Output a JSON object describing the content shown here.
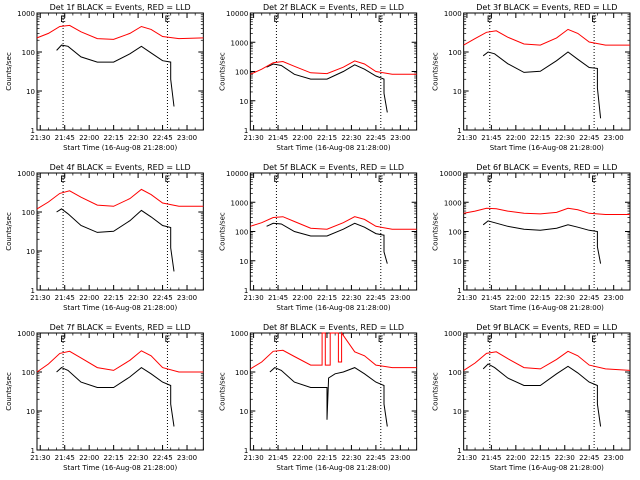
{
  "x_axis_title": "Start Time (16-Aug-08 21:28:00)",
  "y_axis_title": "Counts/sec",
  "x_tick_labels": [
    "21:30",
    "21:45",
    "22:00",
    "22:15",
    "22:30",
    "22:45",
    "23:00"
  ],
  "colors": {
    "events": "#000000",
    "lld": "#ff0000",
    "axis": "#000000",
    "marker": "#000000"
  },
  "chart_data": [
    {
      "type": "line",
      "title": "Det 1f BLACK = Events, RED = LLD",
      "xlabel": "Start Time (16-Aug-08 21:28:00)",
      "ylabel": "Counts/sec",
      "yscale": "log",
      "ylim": [
        1,
        1000
      ],
      "y_tick_labels": [
        "1",
        "10",
        "100",
        "1000"
      ],
      "xlim": [
        "21:28",
        "23:10"
      ],
      "markers": [
        {
          "label": "E",
          "time": "21:44"
        },
        {
          "label": "E",
          "time": "22:48"
        }
      ],
      "series": [
        {
          "name": "Events",
          "color": "#000000",
          "x": [
            "21:40",
            "21:43",
            "21:47",
            "21:55",
            "22:05",
            "22:15",
            "22:25",
            "22:32",
            "22:38",
            "22:45",
            "22:50",
            "22:50",
            "22:52"
          ],
          "y": [
            110,
            150,
            140,
            75,
            55,
            55,
            90,
            140,
            95,
            60,
            55,
            20,
            4
          ]
        },
        {
          "name": "LLD",
          "color": "#ff0000",
          "x": [
            "21:28",
            "21:35",
            "21:42",
            "21:48",
            "21:55",
            "22:05",
            "22:15",
            "22:25",
            "22:32",
            "22:38",
            "22:45",
            "22:55",
            "23:10"
          ],
          "y": [
            230,
            300,
            450,
            480,
            330,
            220,
            210,
            300,
            450,
            380,
            250,
            220,
            230
          ]
        }
      ]
    },
    {
      "type": "line",
      "title": "Det 2f BLACK = Events, RED = LLD",
      "xlabel": "Start Time (16-Aug-08 21:28:00)",
      "ylabel": "Counts/sec",
      "yscale": "log",
      "ylim": [
        1,
        10000
      ],
      "y_tick_labels": [
        "1",
        "10",
        "100",
        "1000",
        "10000"
      ],
      "xlim": [
        "21:28",
        "23:10"
      ],
      "markers": [
        {
          "label": "E",
          "time": "21:44"
        },
        {
          "label": "E",
          "time": "22:48"
        }
      ],
      "series": [
        {
          "name": "Events",
          "color": "#000000",
          "x": [
            "21:38",
            "21:42",
            "21:47",
            "21:55",
            "22:05",
            "22:15",
            "22:25",
            "22:32",
            "22:38",
            "22:45",
            "22:50",
            "22:50",
            "22:52"
          ],
          "y": [
            140,
            180,
            160,
            80,
            55,
            55,
            100,
            170,
            120,
            70,
            55,
            18,
            4
          ]
        },
        {
          "name": "LLD",
          "color": "#ff0000",
          "x": [
            "21:28",
            "21:35",
            "21:42",
            "21:48",
            "21:55",
            "22:05",
            "22:15",
            "22:25",
            "22:32",
            "22:38",
            "22:45",
            "22:55",
            "23:10"
          ],
          "y": [
            80,
            120,
            200,
            220,
            150,
            90,
            85,
            140,
            230,
            180,
            100,
            80,
            80
          ]
        }
      ]
    },
    {
      "type": "line",
      "title": "Det 3f BLACK = Events, RED = LLD",
      "xlabel": "Start Time (16-Aug-08 21:28:00)",
      "ylabel": "Counts/sec",
      "yscale": "log",
      "ylim": [
        1,
        1000
      ],
      "y_tick_labels": [
        "1",
        "10",
        "100",
        "1000"
      ],
      "xlim": [
        "21:28",
        "23:10"
      ],
      "markers": [
        {
          "label": "E",
          "time": "21:44"
        },
        {
          "label": "E",
          "time": "22:48"
        }
      ],
      "series": [
        {
          "name": "Events",
          "color": "#000000",
          "x": [
            "21:40",
            "21:43",
            "21:47",
            "21:55",
            "22:05",
            "22:15",
            "22:25",
            "22:32",
            "22:38",
            "22:45",
            "22:50",
            "22:50",
            "22:52"
          ],
          "y": [
            80,
            100,
            90,
            50,
            30,
            32,
            60,
            100,
            65,
            40,
            38,
            12,
            2
          ]
        },
        {
          "name": "LLD",
          "color": "#ff0000",
          "x": [
            "21:28",
            "21:35",
            "21:42",
            "21:48",
            "21:55",
            "22:05",
            "22:15",
            "22:25",
            "22:32",
            "22:38",
            "22:45",
            "22:55",
            "23:10"
          ],
          "y": [
            150,
            220,
            320,
            350,
            240,
            160,
            150,
            230,
            380,
            300,
            180,
            150,
            150
          ]
        }
      ]
    },
    {
      "type": "line",
      "title": "Det 4f BLACK = Events, RED = LLD",
      "xlabel": "Start Time (16-Aug-08 21:28:00)",
      "ylabel": "Counts/sec",
      "yscale": "log",
      "ylim": [
        1,
        1000
      ],
      "y_tick_labels": [
        "1",
        "10",
        "100",
        "1000"
      ],
      "xlim": [
        "21:28",
        "23:10"
      ],
      "markers": [
        {
          "label": "E",
          "time": "21:44"
        },
        {
          "label": "E",
          "time": "22:48"
        }
      ],
      "series": [
        {
          "name": "Events",
          "color": "#000000",
          "x": [
            "21:40",
            "21:43",
            "21:47",
            "21:55",
            "22:05",
            "22:15",
            "22:25",
            "22:32",
            "22:38",
            "22:45",
            "22:50",
            "22:50",
            "22:52"
          ],
          "y": [
            100,
            120,
            90,
            45,
            30,
            32,
            60,
            110,
            75,
            45,
            40,
            12,
            3
          ]
        },
        {
          "name": "LLD",
          "color": "#ff0000",
          "x": [
            "21:28",
            "21:35",
            "21:42",
            "21:48",
            "21:55",
            "22:05",
            "22:15",
            "22:25",
            "22:32",
            "22:38",
            "22:45",
            "22:55",
            "23:10"
          ],
          "y": [
            120,
            180,
            300,
            350,
            240,
            150,
            140,
            220,
            380,
            280,
            170,
            140,
            140
          ]
        }
      ]
    },
    {
      "type": "line",
      "title": "Det 5f BLACK = Events, RED = LLD",
      "xlabel": "Start Time (16-Aug-08 21:28:00)",
      "ylabel": "Counts/sec",
      "yscale": "log",
      "ylim": [
        1,
        10000
      ],
      "y_tick_labels": [
        "1",
        "10",
        "100",
        "1000",
        "10000"
      ],
      "xlim": [
        "21:28",
        "23:10"
      ],
      "markers": [
        {
          "label": "E",
          "time": "21:44"
        },
        {
          "label": "E",
          "time": "22:48"
        }
      ],
      "series": [
        {
          "name": "Events",
          "color": "#000000",
          "x": [
            "21:38",
            "21:42",
            "21:47",
            "21:55",
            "22:05",
            "22:15",
            "22:25",
            "22:32",
            "22:38",
            "22:45",
            "22:50",
            "22:50",
            "22:52"
          ],
          "y": [
            150,
            190,
            180,
            100,
            70,
            70,
            120,
            190,
            140,
            85,
            75,
            20,
            8
          ]
        },
        {
          "name": "LLD",
          "color": "#ff0000",
          "x": [
            "21:28",
            "21:35",
            "21:42",
            "21:48",
            "21:55",
            "22:05",
            "22:15",
            "22:25",
            "22:32",
            "22:38",
            "22:45",
            "22:55",
            "23:10"
          ],
          "y": [
            150,
            200,
            300,
            320,
            220,
            130,
            120,
            200,
            320,
            260,
            150,
            120,
            120
          ]
        }
      ]
    },
    {
      "type": "line",
      "title": "Det 6f BLACK = Events, RED = LLD",
      "xlabel": "Start Time (16-Aug-08 21:28:00)",
      "ylabel": "Counts/sec",
      "yscale": "log",
      "ylim": [
        1,
        10000
      ],
      "y_tick_labels": [
        "1",
        "10",
        "100",
        "1000",
        "10000"
      ],
      "xlim": [
        "21:28",
        "23:10"
      ],
      "markers": [
        {
          "label": "E",
          "time": "21:44"
        },
        {
          "label": "E",
          "time": "22:48"
        }
      ],
      "series": [
        {
          "name": "Events",
          "color": "#000000",
          "x": [
            "21:40",
            "21:43",
            "21:47",
            "21:55",
            "22:05",
            "22:15",
            "22:25",
            "22:32",
            "22:38",
            "22:45",
            "22:50",
            "22:50",
            "22:52"
          ],
          "y": [
            170,
            230,
            200,
            150,
            120,
            110,
            130,
            170,
            140,
            110,
            100,
            30,
            8
          ]
        },
        {
          "name": "LLD",
          "color": "#ff0000",
          "x": [
            "21:28",
            "21:35",
            "21:42",
            "21:48",
            "21:55",
            "22:05",
            "22:15",
            "22:25",
            "22:32",
            "22:38",
            "22:45",
            "22:55",
            "23:10"
          ],
          "y": [
            420,
            500,
            620,
            600,
            500,
            420,
            400,
            450,
            620,
            550,
            420,
            380,
            380
          ]
        }
      ]
    },
    {
      "type": "line",
      "title": "Det 7f BLACK = Events, RED = LLD",
      "xlabel": "Start Time (16-Aug-08 21:28:00)",
      "ylabel": "Counts/sec",
      "yscale": "log",
      "ylim": [
        1,
        1000
      ],
      "y_tick_labels": [
        "1",
        "10",
        "100",
        "1000"
      ],
      "xlim": [
        "21:28",
        "23:10"
      ],
      "markers": [
        {
          "label": "E",
          "time": "21:44"
        },
        {
          "label": "E",
          "time": "22:48"
        }
      ],
      "series": [
        {
          "name": "Events",
          "color": "#000000",
          "x": [
            "21:40",
            "21:43",
            "21:47",
            "21:55",
            "22:05",
            "22:15",
            "22:25",
            "22:32",
            "22:38",
            "22:45",
            "22:50",
            "22:50",
            "22:52"
          ],
          "y": [
            100,
            130,
            110,
            55,
            40,
            40,
            75,
            130,
            90,
            55,
            45,
            15,
            4
          ]
        },
        {
          "name": "LLD",
          "color": "#ff0000",
          "x": [
            "21:28",
            "21:35",
            "21:42",
            "21:48",
            "21:55",
            "22:05",
            "22:15",
            "22:25",
            "22:32",
            "22:38",
            "22:45",
            "22:55",
            "23:10"
          ],
          "y": [
            100,
            160,
            300,
            340,
            230,
            130,
            110,
            200,
            350,
            260,
            130,
            100,
            100
          ]
        }
      ]
    },
    {
      "type": "line",
      "title": "Det 8f BLACK = Events, RED = LLD",
      "xlabel": "Start Time (16-Aug-08 21:28:00)",
      "ylabel": "Counts/sec",
      "yscale": "log",
      "ylim": [
        1,
        1000
      ],
      "y_tick_labels": [
        "1",
        "10",
        "100",
        "1000"
      ],
      "xlim": [
        "21:28",
        "23:10"
      ],
      "markers": [
        {
          "label": "E",
          "time": "21:44"
        },
        {
          "label": "E",
          "time": "22:48"
        }
      ],
      "series": [
        {
          "name": "Events",
          "color": "#000000",
          "x": [
            "21:40",
            "21:43",
            "21:47",
            "21:55",
            "22:05",
            "22:10",
            "22:15",
            "22:15",
            "22:16",
            "22:20",
            "22:25",
            "22:32",
            "22:38",
            "22:45",
            "22:50",
            "22:50",
            "22:52"
          ],
          "y": [
            100,
            130,
            110,
            55,
            40,
            40,
            40,
            6,
            70,
            90,
            100,
            130,
            90,
            55,
            45,
            15,
            4
          ]
        },
        {
          "name": "LLD",
          "color": "#ff0000",
          "x": [
            "21:28",
            "21:35",
            "21:42",
            "21:48",
            "21:55",
            "22:05",
            "22:12",
            "22:12",
            "22:14",
            "22:14",
            "22:17",
            "22:17",
            "22:22",
            "22:22",
            "22:24",
            "22:24",
            "22:32",
            "22:38",
            "22:45",
            "22:55",
            "23:10"
          ],
          "y": [
            120,
            180,
            340,
            360,
            250,
            150,
            150,
            1000,
            1000,
            150,
            150,
            1000,
            1000,
            180,
            180,
            1000,
            330,
            260,
            150,
            130,
            130
          ]
        }
      ]
    },
    {
      "type": "line",
      "title": "Det 9f BLACK = Events, RED = LLD",
      "xlabel": "Start Time (16-Aug-08 21:28:00)",
      "ylabel": "Counts/sec",
      "yscale": "log",
      "ylim": [
        1,
        1000
      ],
      "y_tick_labels": [
        "1",
        "10",
        "100",
        "1000"
      ],
      "xlim": [
        "21:28",
        "23:10"
      ],
      "markers": [
        {
          "label": "E",
          "time": "21:44"
        },
        {
          "label": "E",
          "time": "22:48"
        }
      ],
      "series": [
        {
          "name": "Events",
          "color": "#000000",
          "x": [
            "21:40",
            "21:43",
            "21:47",
            "21:55",
            "22:05",
            "22:15",
            "22:25",
            "22:32",
            "22:38",
            "22:45",
            "22:50",
            "22:50",
            "22:52"
          ],
          "y": [
            120,
            160,
            130,
            70,
            45,
            45,
            90,
            140,
            95,
            55,
            45,
            15,
            4
          ]
        },
        {
          "name": "LLD",
          "color": "#ff0000",
          "x": [
            "21:28",
            "21:35",
            "21:42",
            "21:48",
            "21:55",
            "22:05",
            "22:15",
            "22:25",
            "22:32",
            "22:38",
            "22:45",
            "22:55",
            "23:10"
          ],
          "y": [
            110,
            170,
            300,
            330,
            220,
            130,
            120,
            210,
            340,
            260,
            150,
            120,
            110
          ]
        }
      ]
    }
  ]
}
